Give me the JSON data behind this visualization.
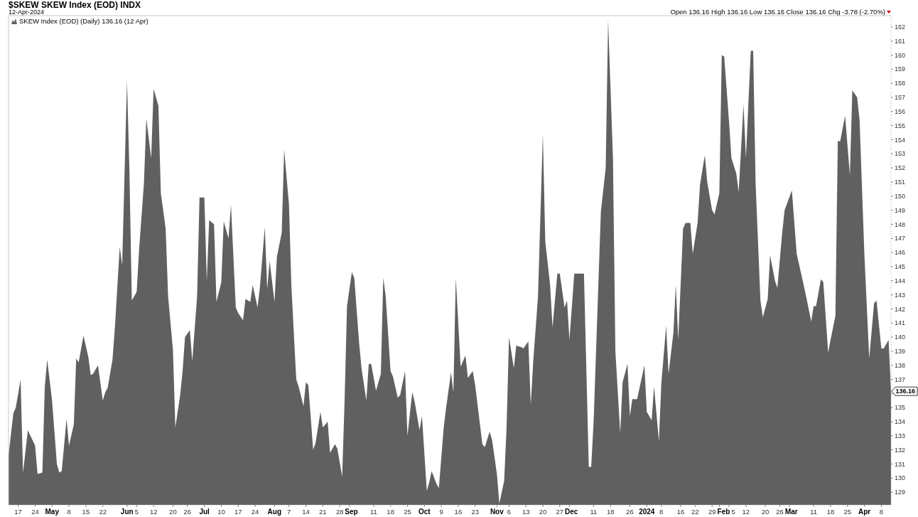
{
  "chart_data": {
    "type": "area",
    "title": "$SKEW SKEW Index (EOD) INDX",
    "subtitle": "12-Apr-2024",
    "annotations": [
      "Open 136.16 High 136.16 Low 136.16 Close 136.16 Chg -3.78 (-2.70%)",
      {
        "text": "136.16",
        "x": "2024-04-12",
        "y": 136.16
      }
    ],
    "legend": "top left",
    "x": [
      "2023-04-13",
      "2023-04-15",
      "2023-04-16",
      "2023-04-18",
      "2023-04-19",
      "2023-04-21",
      "2023-04-24",
      "2023-04-25",
      "2023-04-27",
      "2023-04-28",
      "2023-04-29",
      "2023-05-01",
      "2023-05-03",
      "2023-05-04",
      "2023-05-05",
      "2023-05-07",
      "2023-05-08",
      "2023-05-10",
      "2023-05-11",
      "2023-05-12",
      "2023-05-14",
      "2023-05-16",
      "2023-05-17",
      "2023-05-18",
      "2023-05-20",
      "2023-05-22",
      "2023-05-23",
      "2023-05-24",
      "2023-05-26",
      "2023-05-27",
      "2023-05-29",
      "2023-05-30",
      "2023-06-01",
      "2023-06-02",
      "2023-06-03",
      "2023-06-05",
      "2023-06-06",
      "2023-06-08",
      "2023-06-09",
      "2023-06-11",
      "2023-06-12",
      "2023-06-14",
      "2023-06-15",
      "2023-06-17",
      "2023-06-18",
      "2023-06-20",
      "2023-06-21",
      "2023-06-23",
      "2023-06-24",
      "2023-06-25",
      "2023-06-27",
      "2023-06-28",
      "2023-06-30",
      "2023-07-01",
      "2023-07-03",
      "2023-07-04",
      "2023-07-05",
      "2023-07-07",
      "2023-07-08",
      "2023-07-10",
      "2023-07-11",
      "2023-07-13",
      "2023-07-14",
      "2023-07-16",
      "2023-07-17",
      "2023-07-19",
      "2023-07-20",
      "2023-07-22",
      "2023-07-23",
      "2023-07-25",
      "2023-07-26",
      "2023-07-28",
      "2023-07-29",
      "2023-07-30",
      "2023-08-01",
      "2023-08-02",
      "2023-08-04",
      "2023-08-05",
      "2023-08-07",
      "2023-08-08",
      "2023-08-10",
      "2023-08-11",
      "2023-08-13",
      "2023-08-14",
      "2023-08-15",
      "2023-08-17",
      "2023-08-18",
      "2023-08-20",
      "2023-08-21",
      "2023-08-23",
      "2023-08-24",
      "2023-08-26",
      "2023-08-27",
      "2023-08-29",
      "2023-08-30",
      "2023-08-31",
      "2023-09-02",
      "2023-09-03",
      "2023-09-05",
      "2023-09-06",
      "2023-09-08",
      "2023-09-09",
      "2023-09-10",
      "2023-09-12",
      "2023-09-14",
      "2023-09-15",
      "2023-09-16",
      "2023-09-18",
      "2023-09-19",
      "2023-09-21",
      "2023-09-22",
      "2023-09-24",
      "2023-09-25",
      "2023-09-27",
      "2023-09-28",
      "2023-09-30",
      "2023-10-01",
      "2023-10-03",
      "2023-10-04",
      "2023-10-05",
      "2023-10-07",
      "2023-10-08",
      "2023-10-10",
      "2023-10-11",
      "2023-10-13",
      "2023-10-14",
      "2023-10-15",
      "2023-10-17",
      "2023-10-19",
      "2023-10-20",
      "2023-10-22",
      "2023-10-23",
      "2023-10-25",
      "2023-10-26",
      "2023-10-27",
      "2023-10-29",
      "2023-10-30",
      "2023-11-01",
      "2023-11-02",
      "2023-11-04",
      "2023-11-05",
      "2023-11-06",
      "2023-11-08",
      "2023-11-09",
      "2023-11-11",
      "2023-11-12",
      "2023-11-14",
      "2023-11-15",
      "2023-11-16",
      "2023-11-18",
      "2023-11-20",
      "2023-11-21",
      "2023-11-23",
      "2023-11-24",
      "2023-11-26",
      "2023-11-27",
      "2023-11-29",
      "2023-11-30",
      "2023-12-01",
      "2023-12-03",
      "2023-12-07",
      "2023-12-09",
      "2023-12-10",
      "2023-12-11",
      "2023-12-14",
      "2023-12-16",
      "2023-12-17",
      "2023-12-19",
      "2023-12-20",
      "2023-12-22",
      "2023-12-23",
      "2023-12-25",
      "2023-12-26",
      "2023-12-27",
      "2023-12-29",
      "2024-01-01",
      "2024-01-02",
      "2024-01-04",
      "2024-01-05",
      "2024-01-07",
      "2024-01-08",
      "2024-01-10",
      "2024-01-11",
      "2024-01-13",
      "2024-01-14",
      "2024-01-15",
      "2024-01-17",
      "2024-01-18",
      "2024-01-20",
      "2024-01-21",
      "2024-01-23",
      "2024-01-24",
      "2024-01-26",
      "2024-01-27",
      "2024-01-29",
      "2024-01-30",
      "2024-02-01",
      "2024-02-02",
      "2024-02-03",
      "2024-02-05",
      "2024-02-06",
      "2024-02-08",
      "2024-02-09",
      "2024-02-11",
      "2024-02-12",
      "2024-02-14",
      "2024-02-15",
      "2024-02-16",
      "2024-02-18",
      "2024-02-19",
      "2024-02-21",
      "2024-02-22",
      "2024-02-24",
      "2024-02-25",
      "2024-02-27",
      "2024-02-28",
      "2024-03-02",
      "2024-03-04",
      "2024-03-07",
      "2024-03-08",
      "2024-03-10",
      "2024-03-11",
      "2024-03-12",
      "2024-03-14",
      "2024-03-15",
      "2024-03-17",
      "2024-03-18",
      "2024-03-20",
      "2024-03-21",
      "2024-03-22",
      "2024-03-24",
      "2024-03-26",
      "2024-03-27",
      "2024-03-29",
      "2024-03-30",
      "2024-04-01",
      "2024-04-03",
      "2024-04-05",
      "2024-04-06",
      "2024-04-08",
      "2024-04-09",
      "2024-04-11",
      "2024-04-12"
    ],
    "series": [
      {
        "name": "SKEW Index (EOD) (Daily) 136.16 (12 Apr)",
        "color": "#606060",
        "values": [
          131.6,
          134.6,
          135.0,
          137.0,
          130.4,
          133.4,
          132.3,
          130.3,
          130.4,
          136.5,
          138.4,
          135.5,
          131.0,
          130.4,
          130.5,
          134.2,
          132.3,
          133.8,
          138.5,
          138.2,
          140.1,
          138.6,
          137.3,
          137.4,
          138.0,
          135.5,
          136.1,
          136.4,
          138.4,
          140.7,
          146.4,
          145.1,
          158.2,
          151.8,
          142.6,
          143.2,
          146.2,
          150.9,
          155.5,
          152.7,
          157.6,
          156.4,
          150.2,
          147.7,
          142.9,
          139.1,
          133.6,
          135.9,
          137.6,
          140.0,
          140.5,
          138.3,
          142.9,
          149.9,
          149.9,
          144.0,
          148.3,
          148.0,
          142.5,
          143.9,
          148.2,
          147.0,
          149.4,
          142.1,
          141.7,
          141.2,
          142.7,
          142.5,
          143.7,
          142.1,
          143.6,
          147.8,
          143.4,
          145.4,
          142.5,
          145.7,
          147.4,
          153.3,
          149.4,
          143.6,
          137.0,
          136.5,
          135.1,
          136.8,
          136.6,
          132.0,
          132.5,
          134.7,
          133.6,
          134.0,
          131.8,
          132.4,
          132.1,
          130.1,
          135.5,
          142.2,
          144.6,
          144.2,
          139.6,
          137.8,
          135.5,
          138.1,
          138.1,
          136.2,
          137.4,
          144.2,
          142.9,
          137.6,
          137.2,
          135.7,
          135.9,
          137.6,
          133.0,
          136.1,
          135.4,
          133.4,
          134.4,
          129.1,
          129.7,
          130.5,
          129.6,
          129.3,
          133.6,
          135.0,
          137.5,
          136.1,
          144.2,
          137.9,
          138.7,
          137.1,
          137.6,
          136.6,
          133.8,
          132.4,
          132.2,
          133.3,
          132.7,
          130.3,
          128.2,
          129.8,
          133.6,
          140.0,
          137.8,
          139.4,
          139.3,
          139.2,
          139.7,
          135.2,
          138.2,
          142.9,
          154.4,
          146.8,
          143.7,
          140.7,
          144.5,
          144.5,
          142.1,
          142.6,
          139.8,
          144.5,
          144.5,
          130.8,
          130.8,
          134.0,
          148.9,
          152.0,
          162.5,
          152.7,
          139.0,
          133.2,
          136.8,
          138.1,
          134.4,
          135.6,
          135.6,
          138.0,
          134.7,
          134.1,
          136.5,
          132.6,
          136.7,
          140.8,
          137.4,
          140.3,
          143.7,
          139.8,
          147.7,
          148.1,
          148.1,
          145.9,
          148.1,
          150.8,
          152.9,
          151.0,
          149.0,
          148.7,
          150.2,
          160.0,
          159.9,
          155.3,
          152.7,
          151.6,
          150.3,
          156.5,
          152.7,
          160.3,
          160.3,
          150.9,
          142.6,
          141.4,
          142.7,
          145.8,
          144.0,
          143.5,
          147.4,
          149.0,
          150.4,
          145.9,
          143.6,
          142.8,
          141.1,
          142.2,
          142.2,
          144.1,
          143.9,
          138.9,
          139.8,
          141.5,
          153.9,
          153.9,
          155.7,
          151.5,
          157.5,
          157.0,
          155.4,
          145.8,
          138.5,
          142.4,
          142.6,
          139.2,
          139.2,
          139.8,
          136.16
        ]
      }
    ],
    "xlim": [
      "2023-04-13",
      "2024-04-12"
    ],
    "xticks": [
      {
        "value": "2023-04-17",
        "label": "17"
      },
      {
        "value": "2023-04-24",
        "label": "24"
      },
      {
        "value": "2023-05-01",
        "label": "May"
      },
      {
        "value": "2023-05-08",
        "label": "8"
      },
      {
        "value": "2023-05-15",
        "label": "15"
      },
      {
        "value": "2023-05-22",
        "label": "22"
      },
      {
        "value": "2023-06-01",
        "label": "Jun"
      },
      {
        "value": "2023-06-05",
        "label": "5"
      },
      {
        "value": "2023-06-12",
        "label": "12"
      },
      {
        "value": "2023-06-20",
        "label": "20"
      },
      {
        "value": "2023-06-26",
        "label": "26"
      },
      {
        "value": "2023-07-03",
        "label": "Jul"
      },
      {
        "value": "2023-07-10",
        "label": "10"
      },
      {
        "value": "2023-07-17",
        "label": "17"
      },
      {
        "value": "2023-07-24",
        "label": "24"
      },
      {
        "value": "2023-08-01",
        "label": "Aug"
      },
      {
        "value": "2023-08-07",
        "label": "7"
      },
      {
        "value": "2023-08-14",
        "label": "14"
      },
      {
        "value": "2023-08-21",
        "label": "21"
      },
      {
        "value": "2023-08-28",
        "label": "28"
      },
      {
        "value": "2023-09-01",
        "label": "Sep"
      },
      {
        "value": "2023-09-11",
        "label": "11"
      },
      {
        "value": "2023-09-18",
        "label": "18"
      },
      {
        "value": "2023-09-25",
        "label": "25"
      },
      {
        "value": "2023-10-02",
        "label": "Oct"
      },
      {
        "value": "2023-10-09",
        "label": "9"
      },
      {
        "value": "2023-10-16",
        "label": "16"
      },
      {
        "value": "2023-10-23",
        "label": "23"
      },
      {
        "value": "2023-11-01",
        "label": "Nov"
      },
      {
        "value": "2023-11-06",
        "label": "6"
      },
      {
        "value": "2023-11-13",
        "label": "13"
      },
      {
        "value": "2023-11-20",
        "label": "20"
      },
      {
        "value": "2023-11-27",
        "label": "27"
      },
      {
        "value": "2023-12-01",
        "label": "Dec"
      },
      {
        "value": "2023-12-11",
        "label": "11"
      },
      {
        "value": "2023-12-18",
        "label": "18"
      },
      {
        "value": "2023-12-26",
        "label": "26"
      },
      {
        "value": "2024-01-02",
        "label": "2024"
      },
      {
        "value": "2024-01-08",
        "label": "8"
      },
      {
        "value": "2024-01-16",
        "label": "16"
      },
      {
        "value": "2024-01-22",
        "label": "22"
      },
      {
        "value": "2024-01-29",
        "label": "29"
      },
      {
        "value": "2024-02-01",
        "label": "Feb"
      },
      {
        "value": "2024-02-05",
        "label": "5"
      },
      {
        "value": "2024-02-12",
        "label": "12"
      },
      {
        "value": "2024-02-20",
        "label": "20"
      },
      {
        "value": "2024-02-26",
        "label": "26"
      },
      {
        "value": "2024-03-01",
        "label": "Mar"
      },
      {
        "value": "2024-03-11",
        "label": "11"
      },
      {
        "value": "2024-03-18",
        "label": "18"
      },
      {
        "value": "2024-03-25",
        "label": "25"
      },
      {
        "value": "2024-04-01",
        "label": "Apr"
      },
      {
        "value": "2024-04-08",
        "label": "8"
      }
    ],
    "ylim": [
      128.1,
      162.8
    ],
    "yticks": [
      129,
      130,
      131,
      132,
      133,
      134,
      135,
      {
        "value": 136,
        "label": null
      },
      137,
      138,
      139,
      140,
      141,
      142,
      143,
      144,
      145,
      146,
      147,
      148,
      149,
      150,
      151,
      152,
      153,
      154,
      155,
      156,
      157,
      158,
      159,
      160,
      161,
      162
    ]
  }
}
